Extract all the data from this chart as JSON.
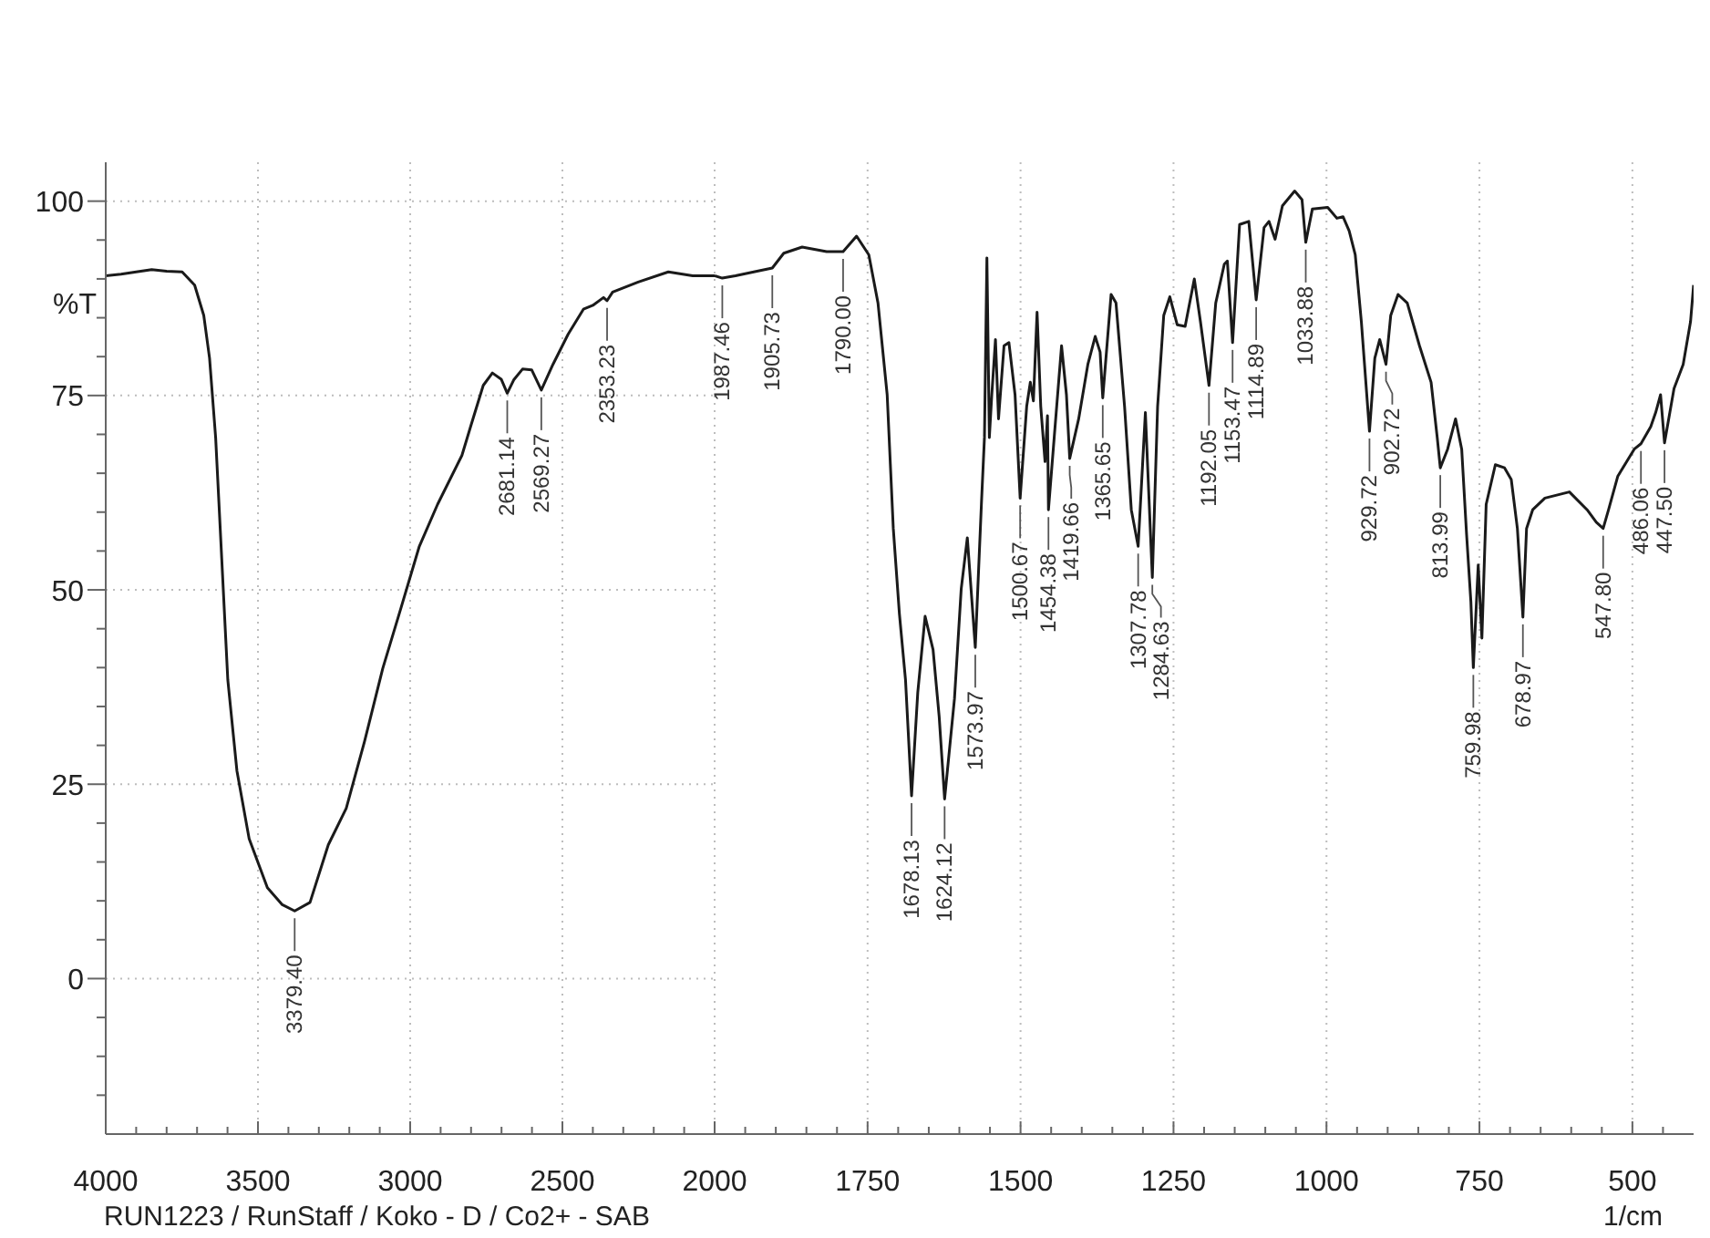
{
  "chart_data": [
    {
      "type": "line",
      "ylabel": "%T",
      "x": [
        4000,
        3950,
        3900,
        3849,
        3800,
        3749,
        3708,
        3678,
        3659,
        3639,
        3619,
        3599,
        3569,
        3529,
        3469,
        3420,
        3379.4,
        3329,
        3269,
        3210,
        3150,
        3090,
        3030,
        2970,
        2910,
        2830,
        2800,
        2760,
        2730,
        2701,
        2681.14,
        2660,
        2631,
        2601,
        2569.27,
        2531,
        2481,
        2431,
        2400,
        2365,
        2353.23,
        2335,
        2251,
        2152,
        2072,
        2000
      ],
      "series": [
        {
          "color": "#1a1a1a",
          "values": [
            90.4,
            90.6,
            90.9,
            91.2,
            91.0,
            90.9,
            89.2,
            85.3,
            79.8,
            69.6,
            54.0,
            38.4,
            26.7,
            18.0,
            11.7,
            9.5,
            8.7,
            9.8,
            17.2,
            21.9,
            30.5,
            39.9,
            47.7,
            55.6,
            61.0,
            67.3,
            71.2,
            76.3,
            77.9,
            77.1,
            75.3,
            77.0,
            78.4,
            78.3,
            75.7,
            79.0,
            82.9,
            86.1,
            86.6,
            87.6,
            87.2,
            88.3,
            89.6,
            90.9,
            90.4,
            90.4
          ]
        }
      ],
      "xlim": [
        4000,
        2000
      ],
      "ylim": [
        -20,
        105
      ],
      "xticks": [
        4000,
        {
          "value": 3900,
          "label": null
        },
        {
          "value": 3800,
          "label": null
        },
        {
          "value": 3700,
          "label": null
        },
        {
          "value": 3600,
          "label": null
        },
        3500,
        {
          "value": 3400,
          "label": null
        },
        {
          "value": 3300,
          "label": null
        },
        {
          "value": 3200,
          "label": null
        },
        {
          "value": 3100,
          "label": null
        },
        3000,
        {
          "value": 2900,
          "label": null
        },
        {
          "value": 2800,
          "label": null
        },
        {
          "value": 2700,
          "label": null
        },
        {
          "value": 2600,
          "label": null
        },
        2500,
        {
          "value": 2400,
          "label": null
        },
        {
          "value": 2300,
          "label": null
        },
        {
          "value": 2200,
          "label": null
        },
        {
          "value": 2100,
          "label": null
        },
        2000
      ],
      "yticks": [
        {
          "value": -15,
          "label": null
        },
        {
          "value": -10,
          "label": null
        },
        {
          "value": -5,
          "label": null
        },
        0,
        {
          "value": 5,
          "label": null
        },
        {
          "value": 10,
          "label": null
        },
        {
          "value": 15,
          "label": null
        },
        {
          "value": 20,
          "label": null
        },
        25,
        {
          "value": 30,
          "label": null
        },
        {
          "value": 35,
          "label": null
        },
        {
          "value": 40,
          "label": null
        },
        {
          "value": 45,
          "label": null
        },
        50,
        {
          "value": 55,
          "label": null
        },
        {
          "value": 60,
          "label": null
        },
        {
          "value": 65,
          "label": null
        },
        {
          "value": 70,
          "label": null
        },
        75,
        {
          "value": 80,
          "label": null
        },
        {
          "value": 85,
          "label": null
        },
        {
          "value": 90,
          "label": null
        },
        {
          "value": 95,
          "label": null
        },
        100
      ],
      "grid": true,
      "annotations": [
        {
          "text": "3379.40",
          "x": 3379.4,
          "y": 8.7
        },
        {
          "text": "2681.14",
          "x": 2681.14,
          "y": 75.3
        },
        {
          "text": "2569.27",
          "x": 2569.27,
          "y": 75.7
        },
        {
          "text": "2353.23",
          "x": 2353.23,
          "y": 87.2
        },
        "RUN1223 / RunStaff / Koko - D / Co2+ - SAB"
      ]
    },
    {
      "type": "line",
      "xlabel": "1/cm",
      "x": [
        2000,
        1987.46,
        1966,
        1936,
        1905.73,
        1887,
        1857,
        1817,
        1790,
        1768,
        1748,
        1733,
        1718,
        1708,
        1698,
        1688,
        1678.13,
        1668,
        1656,
        1643,
        1633,
        1624.12,
        1608,
        1597,
        1587,
        1573.97,
        1564,
        1559,
        1555,
        1551,
        1547,
        1541,
        1536,
        1527,
        1519,
        1509,
        1500.67,
        1490,
        1484,
        1479,
        1473,
        1467,
        1460,
        1456,
        1454.38,
        1445,
        1433,
        1425,
        1419.66,
        1405,
        1390,
        1378,
        1370,
        1365.65,
        1352,
        1344,
        1330,
        1319,
        1307.78,
        1296,
        1284.63,
        1276,
        1266,
        1256,
        1244,
        1231,
        1216,
        1206,
        1192.05,
        1181,
        1167,
        1162,
        1153.47,
        1142,
        1127,
        1114.89,
        1102,
        1094,
        1084,
        1072,
        1052,
        1040,
        1033.88,
        1023,
        998,
        983,
        973,
        963,
        953,
        943,
        929.72,
        921,
        913,
        902.72,
        895,
        883,
        868,
        848,
        829,
        819,
        813.99,
        802,
        789,
        779,
        771,
        764,
        759.98,
        752,
        746,
        739,
        724,
        709,
        698,
        688,
        678.97,
        673,
        663,
        643,
        603,
        574,
        559,
        547.8,
        539,
        524,
        497,
        486.06,
        470,
        462,
        454,
        447.5,
        432,
        417,
        405,
        400
      ],
      "series": [
        {
          "color": "#1a1a1a",
          "values": [
            90.4,
            90.1,
            90.4,
            90.9,
            91.4,
            93.3,
            94.1,
            93.5,
            93.5,
            95.5,
            93.1,
            86.9,
            75.1,
            57.9,
            46.9,
            38.4,
            23.5,
            36.8,
            46.6,
            42.3,
            33.7,
            23.1,
            36.0,
            50.1,
            56.7,
            42.6,
            61.0,
            69.6,
            92.7,
            69.6,
            75.1,
            82.2,
            72.0,
            81.4,
            81.8,
            75.1,
            61.8,
            73.6,
            76.7,
            74.3,
            85.7,
            73.6,
            66.5,
            72.4,
            60.3,
            69.6,
            81.4,
            75.1,
            66.9,
            72.0,
            79.0,
            82.6,
            80.6,
            74.7,
            88.0,
            86.9,
            73.6,
            60.3,
            55.6,
            72.8,
            51.6,
            73.6,
            85.3,
            87.7,
            84.1,
            83.9,
            90.0,
            84.5,
            76.3,
            86.9,
            91.9,
            92.3,
            81.8,
            97.0,
            97.4,
            87.3,
            96.6,
            97.4,
            95.1,
            99.4,
            101.3,
            100.2,
            94.7,
            99.0,
            99.2,
            97.8,
            98.0,
            96.2,
            93.1,
            84.5,
            70.4,
            79.8,
            82.2,
            79.0,
            85.3,
            88.0,
            86.9,
            81.4,
            76.7,
            69.6,
            65.7,
            68.1,
            72.0,
            68.1,
            57.1,
            48.5,
            40.0,
            53.2,
            43.8,
            61.0,
            66.1,
            65.7,
            64.2,
            57.9,
            46.5,
            57.9,
            60.3,
            61.8,
            62.6,
            60.3,
            58.7,
            57.9,
            60.3,
            64.6,
            68.1,
            68.8,
            71.0,
            72.8,
            75.1,
            68.9,
            75.9,
            79.0,
            84.5,
            89.2
          ]
        }
      ],
      "xlim": [
        2000,
        400
      ],
      "ylim": [
        -20,
        105
      ],
      "xticks": [
        {
          "value": 1950,
          "label": null
        },
        {
          "value": 1900,
          "label": null
        },
        {
          "value": 1850,
          "label": null
        },
        {
          "value": 1800,
          "label": null
        },
        1750,
        {
          "value": 1700,
          "label": null
        },
        {
          "value": 1650,
          "label": null
        },
        {
          "value": 1600,
          "label": null
        },
        {
          "value": 1550,
          "label": null
        },
        1500,
        {
          "value": 1450,
          "label": null
        },
        {
          "value": 1400,
          "label": null
        },
        {
          "value": 1350,
          "label": null
        },
        {
          "value": 1300,
          "label": null
        },
        1250,
        {
          "value": 1200,
          "label": null
        },
        {
          "value": 1150,
          "label": null
        },
        {
          "value": 1100,
          "label": null
        },
        {
          "value": 1050,
          "label": null
        },
        1000,
        {
          "value": 950,
          "label": null
        },
        {
          "value": 900,
          "label": null
        },
        {
          "value": 850,
          "label": null
        },
        {
          "value": 800,
          "label": null
        },
        750,
        {
          "value": 700,
          "label": null
        },
        {
          "value": 650,
          "label": null
        },
        {
          "value": 600,
          "label": null
        },
        {
          "value": 550,
          "label": null
        },
        500,
        {
          "value": 450,
          "label": null
        }
      ],
      "yticks": [
        0,
        25,
        50,
        75,
        100
      ],
      "grid": true,
      "tick_labels": "x",
      "annotations": [
        {
          "text": "1987.46",
          "x": 1987.46,
          "y": 90.1
        },
        {
          "text": "1905.73",
          "x": 1905.73,
          "y": 91.4
        },
        {
          "text": "1790.00",
          "x": 1790,
          "y": 93.5
        },
        {
          "text": "1678.13",
          "x": 1678.13,
          "y": 23.5
        },
        {
          "text": "1624.12",
          "x": 1624.12,
          "y": 23.1
        },
        {
          "text": "1573.97",
          "x": 1573.97,
          "y": 42.6
        },
        {
          "text": "1500.67",
          "x": 1500.67,
          "y": 61.8
        },
        {
          "text": "1454.38",
          "x": 1454.38,
          "y": 60.3
        },
        {
          "text": "1419.66",
          "x": 1419.66,
          "y": 66.9
        },
        {
          "text": "1365.65",
          "x": 1365.65,
          "y": 74.7
        },
        {
          "text": "1307.78",
          "x": 1307.78,
          "y": 55.6
        },
        {
          "text": "1284.63",
          "x": 1284.63,
          "y": 51.6
        },
        {
          "text": "1192.05",
          "x": 1192.05,
          "y": 76.3
        },
        {
          "text": "1153.47",
          "x": 1153.47,
          "y": 81.8
        },
        {
          "text": "1114.89",
          "x": 1114.89,
          "y": 87.3
        },
        {
          "text": "1033.88",
          "x": 1033.88,
          "y": 94.7
        },
        {
          "text": "929.72",
          "x": 929.72,
          "y": 70.4
        },
        {
          "text": "902.72",
          "x": 902.72,
          "y": 79.0
        },
        {
          "text": "813.99",
          "x": 813.99,
          "y": 65.7
        },
        {
          "text": "759.98",
          "x": 759.98,
          "y": 40.0
        },
        {
          "text": "678.97",
          "x": 678.97,
          "y": 46.5
        },
        {
          "text": "547.80",
          "x": 547.8,
          "y": 57.9
        },
        {
          "text": "486.06",
          "x": 486.06,
          "y": 68.8
        },
        {
          "text": "447.50",
          "x": 447.5,
          "y": 68.9
        }
      ]
    }
  ]
}
